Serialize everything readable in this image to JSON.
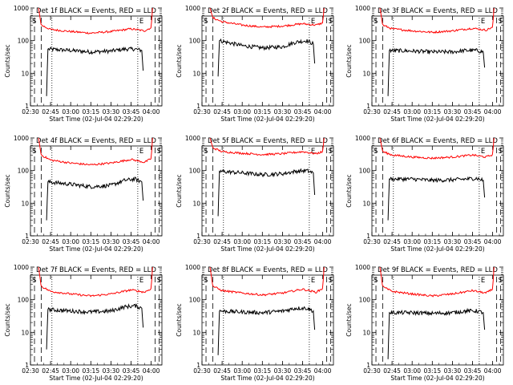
{
  "y_axis_label": "Counts/sec",
  "y_tick_labels": [
    "1",
    "10",
    "100",
    "1000"
  ],
  "x_tick_labels": [
    "02:30",
    "02:45",
    "03:00",
    "03:15",
    "03:30",
    "03:45",
    "04:00"
  ],
  "x_axis_label": "Start Time (02-Jul-04 02:29:20)",
  "flag_labels": [
    "S",
    "E",
    "S"
  ],
  "colors": {
    "events": "#000000",
    "lld": "#ff0000",
    "axes": "#000000"
  },
  "chart_data": [
    {
      "type": "line",
      "title": "Det 1f BLACK = Events, RED = LLD",
      "xlabel": "Start Time (02-Jul-04 02:29:20)",
      "ylabel": "Counts/sec",
      "xlim": [
        "02:30",
        "04:08"
      ],
      "ylim": [
        1,
        1000
      ],
      "y_scale": "log",
      "series": [
        {
          "name": "Events",
          "color": "#000000",
          "x": [
            "02:42",
            "02:43",
            "03:00",
            "03:15",
            "03:30",
            "03:40",
            "03:48",
            "03:53",
            "03:54"
          ],
          "y": [
            2,
            55,
            50,
            45,
            48,
            55,
            55,
            50,
            12
          ]
        },
        {
          "name": "LLD",
          "color": "#ff0000",
          "x": [
            "02:36",
            "02:38",
            "02:45",
            "03:00",
            "03:15",
            "03:30",
            "03:45",
            "03:55",
            "04:00",
            "04:01"
          ],
          "y": [
            1000,
            300,
            220,
            190,
            170,
            190,
            230,
            200,
            250,
            1000
          ]
        }
      ]
    },
    {
      "type": "line",
      "title": "Det 2f BLACK = Events, RED = LLD",
      "xlabel": "Start Time (02-Jul-04 02:29:20)",
      "ylabel": "Counts/sec",
      "xlim": [
        "02:30",
        "04:08"
      ],
      "ylim": [
        1,
        1000
      ],
      "y_scale": "log",
      "series": [
        {
          "name": "Events",
          "color": "#000000",
          "x": [
            "02:42",
            "02:43",
            "03:00",
            "03:15",
            "03:30",
            "03:40",
            "03:48",
            "03:53",
            "03:54"
          ],
          "y": [
            8,
            100,
            70,
            60,
            65,
            90,
            100,
            80,
            20
          ]
        },
        {
          "name": "LLD",
          "color": "#ff0000",
          "x": [
            "02:36",
            "02:38",
            "02:45",
            "03:00",
            "03:15",
            "03:30",
            "03:45",
            "03:55",
            "04:00",
            "04:01"
          ],
          "y": [
            1000,
            500,
            380,
            300,
            260,
            280,
            330,
            300,
            350,
            1000
          ]
        }
      ]
    },
    {
      "type": "line",
      "title": "Det 3f BLACK = Events, RED = LLD",
      "xlabel": "Start Time (02-Jul-04 02:29:20)",
      "ylabel": "Counts/sec",
      "xlim": [
        "02:30",
        "04:08"
      ],
      "ylim": [
        1,
        1000
      ],
      "y_scale": "log",
      "series": [
        {
          "name": "Events",
          "color": "#000000",
          "x": [
            "02:42",
            "02:43",
            "03:00",
            "03:15",
            "03:30",
            "03:40",
            "03:48",
            "03:53",
            "03:54"
          ],
          "y": [
            2,
            50,
            48,
            45,
            45,
            50,
            50,
            45,
            15
          ]
        },
        {
          "name": "LLD",
          "color": "#ff0000",
          "x": [
            "02:36",
            "02:38",
            "02:45",
            "03:00",
            "03:15",
            "03:30",
            "03:45",
            "03:55",
            "04:00",
            "04:01"
          ],
          "y": [
            1000,
            300,
            230,
            200,
            180,
            200,
            240,
            210,
            260,
            1000
          ]
        }
      ]
    },
    {
      "type": "line",
      "title": "Det 4f BLACK = Events, RED = LLD",
      "xlabel": "Start Time (02-Jul-04 02:29:20)",
      "ylabel": "Counts/sec",
      "xlim": [
        "02:30",
        "04:08"
      ],
      "ylim": [
        1,
        1000
      ],
      "y_scale": "log",
      "series": [
        {
          "name": "Events",
          "color": "#000000",
          "x": [
            "02:42",
            "02:43",
            "03:00",
            "03:15",
            "03:30",
            "03:40",
            "03:48",
            "03:53",
            "03:54"
          ],
          "y": [
            3,
            45,
            38,
            32,
            35,
            50,
            55,
            45,
            12
          ]
        },
        {
          "name": "LLD",
          "color": "#ff0000",
          "x": [
            "02:36",
            "02:38",
            "02:45",
            "03:00",
            "03:15",
            "03:30",
            "03:45",
            "03:55",
            "04:00",
            "04:01"
          ],
          "y": [
            1000,
            300,
            210,
            170,
            150,
            170,
            220,
            180,
            230,
            1000
          ]
        }
      ]
    },
    {
      "type": "line",
      "title": "Det 5f BLACK = Events, RED = LLD",
      "xlabel": "Start Time (02-Jul-04 02:29:20)",
      "ylabel": "Counts/sec",
      "xlim": [
        "02:30",
        "04:08"
      ],
      "ylim": [
        1,
        1000
      ],
      "y_scale": "log",
      "series": [
        {
          "name": "Events",
          "color": "#000000",
          "x": [
            "02:42",
            "02:43",
            "03:00",
            "03:15",
            "03:30",
            "03:40",
            "03:48",
            "03:53",
            "03:54"
          ],
          "y": [
            4,
            95,
            85,
            75,
            80,
            95,
            100,
            85,
            18
          ]
        },
        {
          "name": "LLD",
          "color": "#ff0000",
          "x": [
            "02:36",
            "02:38",
            "02:45",
            "03:00",
            "03:15",
            "03:30",
            "03:45",
            "03:55",
            "04:00",
            "04:01"
          ],
          "y": [
            1000,
            500,
            380,
            340,
            310,
            330,
            380,
            330,
            380,
            1000
          ]
        }
      ]
    },
    {
      "type": "line",
      "title": "Det 6f BLACK = Events, RED = LLD",
      "xlabel": "Start Time (02-Jul-04 02:29:20)",
      "ylabel": "Counts/sec",
      "xlim": [
        "02:30",
        "04:08"
      ],
      "ylim": [
        1,
        1000
      ],
      "y_scale": "log",
      "series": [
        {
          "name": "Events",
          "color": "#000000",
          "x": [
            "02:42",
            "02:43",
            "03:00",
            "03:15",
            "03:30",
            "03:40",
            "03:48",
            "03:53",
            "03:54"
          ],
          "y": [
            3,
            55,
            55,
            50,
            52,
            55,
            58,
            50,
            15
          ]
        },
        {
          "name": "LLD",
          "color": "#ff0000",
          "x": [
            "02:36",
            "02:38",
            "02:45",
            "03:00",
            "03:15",
            "03:30",
            "03:45",
            "03:55",
            "04:00",
            "04:01"
          ],
          "y": [
            1000,
            380,
            300,
            260,
            240,
            260,
            300,
            260,
            310,
            1000
          ]
        }
      ]
    },
    {
      "type": "line",
      "title": "Det 7f BLACK = Events, RED = LLD",
      "xlabel": "Start Time (02-Jul-04 02:29:20)",
      "ylabel": "Counts/sec",
      "xlim": [
        "02:30",
        "04:08"
      ],
      "ylim": [
        1,
        1000
      ],
      "y_scale": "log",
      "series": [
        {
          "name": "Events",
          "color": "#000000",
          "x": [
            "02:42",
            "02:43",
            "03:00",
            "03:15",
            "03:30",
            "03:40",
            "03:48",
            "03:53",
            "03:54"
          ],
          "y": [
            3,
            50,
            45,
            42,
            45,
            60,
            65,
            55,
            14
          ]
        },
        {
          "name": "LLD",
          "color": "#ff0000",
          "x": [
            "02:36",
            "02:38",
            "02:45",
            "03:00",
            "03:15",
            "03:30",
            "03:45",
            "03:55",
            "04:00",
            "04:01"
          ],
          "y": [
            1000,
            260,
            180,
            150,
            130,
            150,
            200,
            170,
            220,
            1000
          ]
        }
      ]
    },
    {
      "type": "line",
      "title": "Det 8f BLACK = Events, RED = LLD",
      "xlabel": "Start Time (02-Jul-04 02:29:20)",
      "ylabel": "Counts/sec",
      "xlim": [
        "02:30",
        "04:08"
      ],
      "ylim": [
        1,
        1000
      ],
      "y_scale": "log",
      "series": [
        {
          "name": "Events",
          "color": "#000000",
          "x": [
            "02:42",
            "02:43",
            "03:00",
            "03:15",
            "03:30",
            "03:40",
            "03:48",
            "03:53",
            "03:54"
          ],
          "y": [
            2,
            45,
            42,
            40,
            45,
            55,
            55,
            45,
            12
          ]
        },
        {
          "name": "LLD",
          "color": "#ff0000",
          "x": [
            "02:36",
            "02:38",
            "02:45",
            "03:00",
            "03:15",
            "03:30",
            "03:45",
            "03:55",
            "04:00",
            "04:01"
          ],
          "y": [
            1000,
            260,
            190,
            160,
            140,
            160,
            210,
            170,
            220,
            1000
          ]
        }
      ]
    },
    {
      "type": "line",
      "title": "Det 9f BLACK = Events, RED = LLD",
      "xlabel": "Start Time (02-Jul-04 02:29:20)",
      "ylabel": "Counts/sec",
      "xlim": [
        "02:30",
        "04:08"
      ],
      "ylim": [
        1,
        1000
      ],
      "y_scale": "log",
      "series": [
        {
          "name": "Events",
          "color": "#000000",
          "x": [
            "02:42",
            "02:43",
            "03:00",
            "03:15",
            "03:30",
            "03:40",
            "03:48",
            "03:53",
            "03:54"
          ],
          "y": [
            1.5,
            40,
            40,
            38,
            40,
            45,
            45,
            40,
            12
          ]
        },
        {
          "name": "LLD",
          "color": "#ff0000",
          "x": [
            "02:36",
            "02:38",
            "02:45",
            "03:00",
            "03:15",
            "03:30",
            "03:45",
            "03:55",
            "04:00",
            "04:01"
          ],
          "y": [
            1000,
            250,
            180,
            150,
            130,
            150,
            190,
            160,
            210,
            1000
          ]
        }
      ]
    }
  ]
}
